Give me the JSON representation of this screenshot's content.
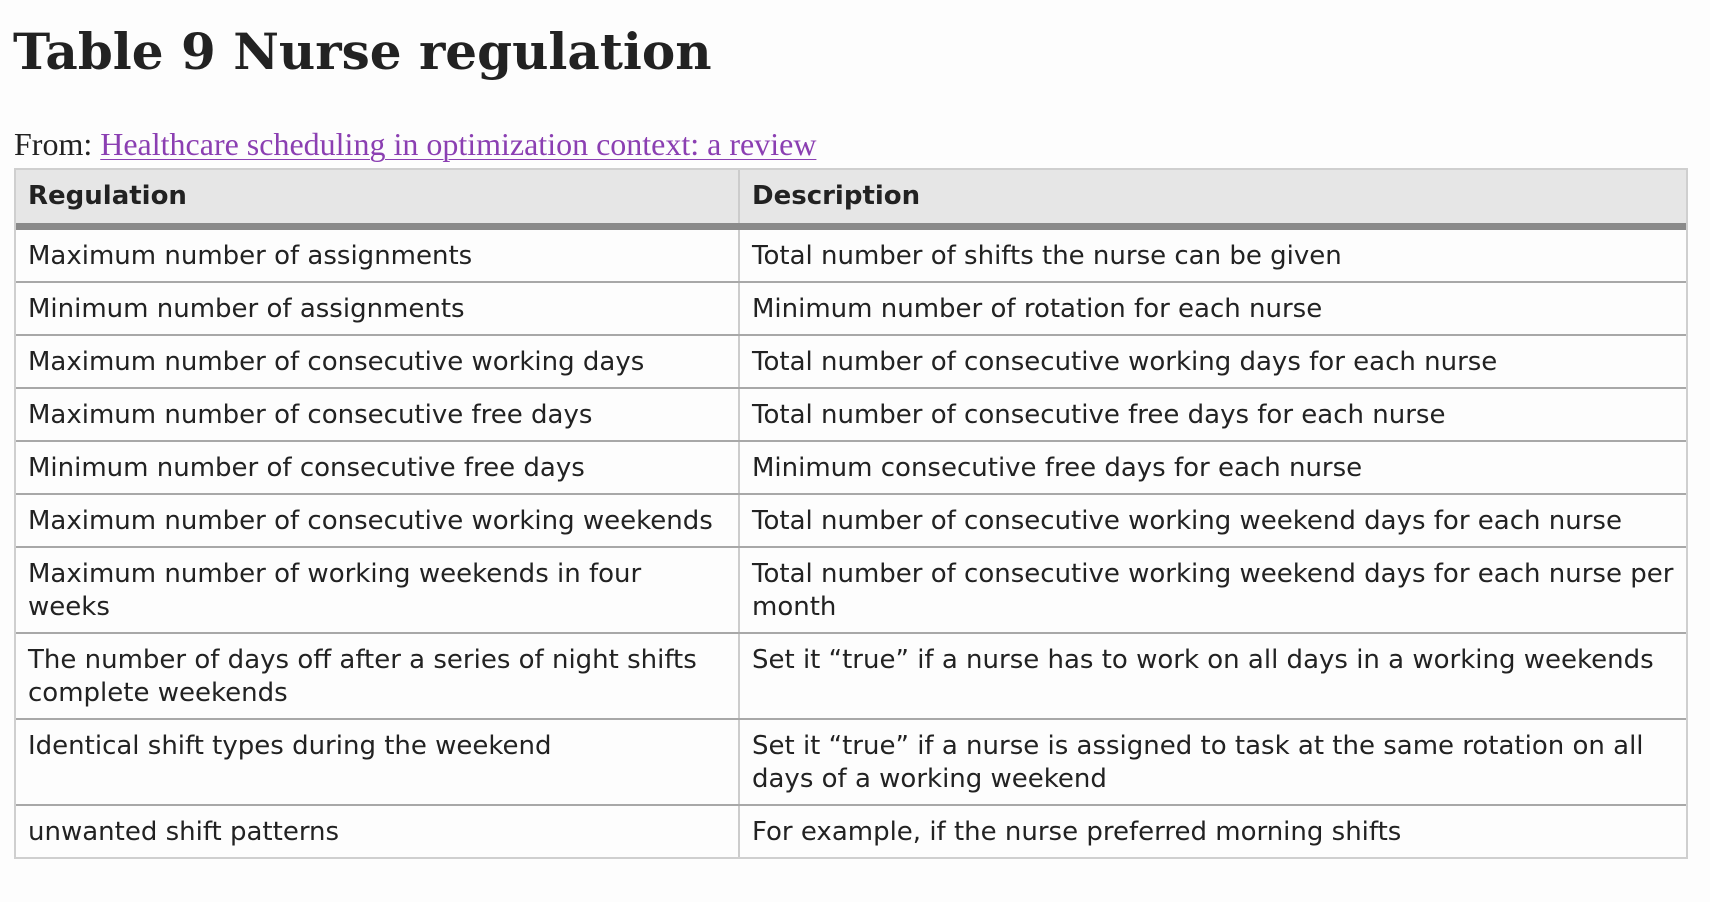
{
  "title": "Table 9 Nurse regulation",
  "source": {
    "prefix": "From: ",
    "link_text": "Healthcare scheduling in optimization context: a review"
  },
  "table": {
    "headers": [
      "Regulation",
      "Description"
    ],
    "rows": [
      [
        "Maximum number of assignments",
        "Total number of shifts the nurse can be given"
      ],
      [
        "Minimum number of assignments",
        "Minimum number of rotation for each nurse"
      ],
      [
        "Maximum number of consecutive working days",
        "Total number of consecutive working days for each nurse"
      ],
      [
        "Maximum number of consecutive free days",
        "Total number of consecutive free days for each nurse"
      ],
      [
        "Minimum number of consecutive free days",
        "Minimum consecutive free days for each nurse"
      ],
      [
        "Maximum number of consecutive working weekends",
        "Total number of consecutive working weekend days for each nurse"
      ],
      [
        "Maximum number of working weekends in four weeks",
        "Total number of consecutive working weekend days for each nurse per month"
      ],
      [
        "The number of days off after a series of night shifts complete weekends",
        "Set it “true” if a nurse has to work on all days in a working weekends"
      ],
      [
        "Identical shift types during the weekend",
        "Set it “true” if a nurse is assigned to task at the same rotation on all days of a working weekend"
      ],
      [
        "unwanted shift patterns",
        "For example, if the nurse preferred morning shifts"
      ]
    ]
  }
}
